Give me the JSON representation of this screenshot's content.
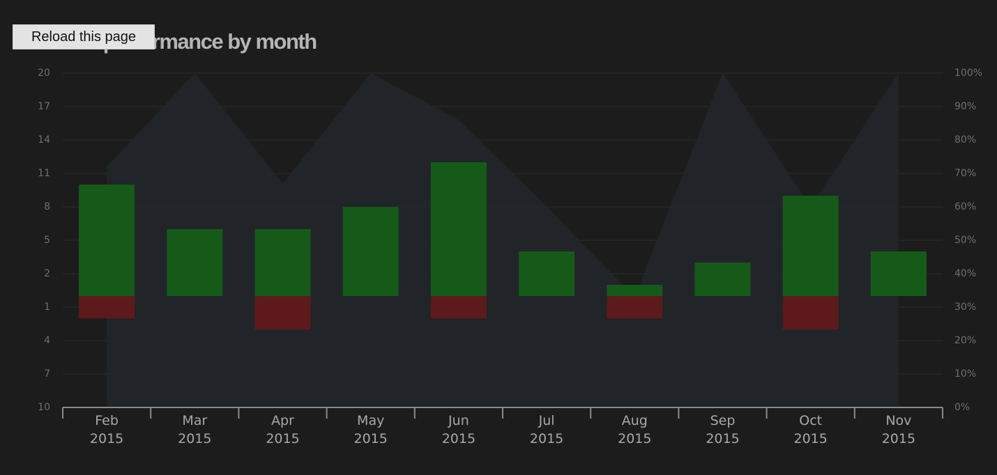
{
  "button": {
    "label": "Reload this page"
  },
  "chart_data": {
    "type": "bar",
    "title": "Team performance by month",
    "categories": [
      "Feb 2015",
      "Mar 2015",
      "Apr 2015",
      "May 2015",
      "Jun 2015",
      "Jul 2015",
      "Aug 2015",
      "Sep 2015",
      "Oct 2015",
      "Nov 2015"
    ],
    "series": [
      {
        "color": "#165a1a",
        "values": [
          10,
          6,
          6,
          8,
          12,
          4,
          1,
          3,
          9,
          4
        ]
      },
      {
        "color": "#5e1a1b",
        "values": [
          -2,
          null,
          -3,
          null,
          -2,
          null,
          -2,
          null,
          -3,
          null
        ]
      },
      {
        "type": "area",
        "axis": "y2",
        "color": "#22262b",
        "values": [
          72,
          100,
          67,
          100,
          86,
          60,
          33,
          100,
          60,
          100
        ]
      }
    ],
    "ylim": [
      -10,
      20
    ],
    "yticks": [
      20,
      17,
      14,
      11,
      8,
      5,
      2,
      {
        "value": -1,
        "label": "1"
      },
      {
        "value": -4,
        "label": "4"
      },
      {
        "value": -7,
        "label": "7"
      },
      {
        "value": -10,
        "label": "10"
      }
    ],
    "y2lim": [
      0,
      100
    ],
    "y2ticks": [
      {
        "value": 100,
        "label": "100%"
      },
      {
        "value": 90,
        "label": "90%"
      },
      {
        "value": 80,
        "label": "80%"
      },
      {
        "value": 70,
        "label": "70%"
      },
      {
        "value": 60,
        "label": "60%"
      },
      {
        "value": 50,
        "label": "50%"
      },
      {
        "value": 40,
        "label": "40%"
      },
      {
        "value": 30,
        "label": "30%"
      },
      {
        "value": 20,
        "label": "20%"
      },
      {
        "value": 10,
        "label": "10%"
      },
      {
        "value": 0,
        "label": "0%"
      }
    ],
    "grid": true
  }
}
